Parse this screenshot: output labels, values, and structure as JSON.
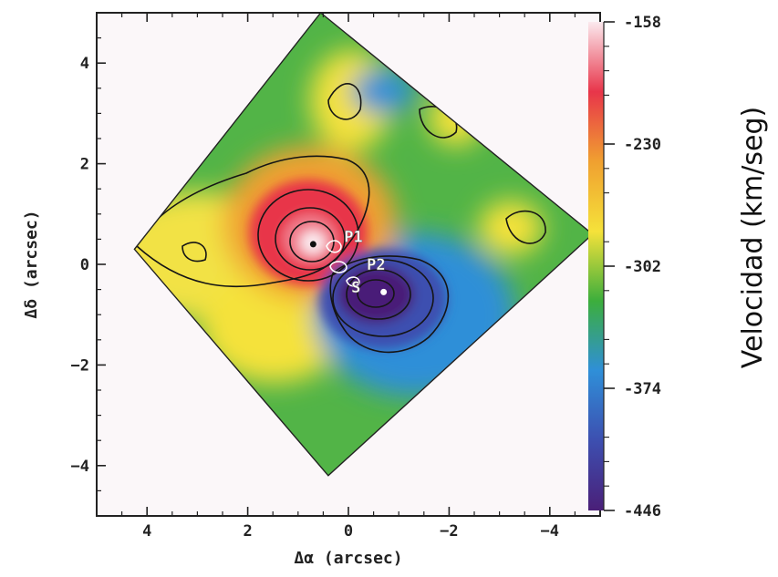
{
  "chart_data": {
    "type": "heatmap",
    "title": "",
    "xlabel": "Δα (arcsec)",
    "ylabel": "Δδ (arcsec)",
    "xlim": [
      5,
      -5
    ],
    "ylim": [
      -5,
      5
    ],
    "x_ticks": [
      4,
      2,
      0,
      -2,
      -4
    ],
    "y_ticks": [
      4,
      2,
      0,
      -2,
      -4
    ],
    "x_tick_labels": [
      "4",
      "2",
      "0",
      "−2",
      "−4"
    ],
    "y_tick_labels": [
      "4",
      "2",
      "0",
      "−2",
      "−4"
    ],
    "colorbar": {
      "label": "Velocidad (km/seg)",
      "min": -446,
      "max": -158,
      "ticks": [
        -158,
        -230,
        -302,
        -374,
        -446
      ],
      "tick_labels": [
        "-158",
        "-230",
        "-302",
        "-374",
        "-446"
      ],
      "colors": [
        "#fbe9ee",
        "#e8354a",
        "#f0a030",
        "#f5e23a",
        "#3cae3c",
        "#2f8fd8",
        "#3d4fb0",
        "#4a1f78"
      ]
    },
    "features": [
      {
        "label": "P1",
        "x": -0.1,
        "y": 0.55
      },
      {
        "label": "P2",
        "x": -0.55,
        "y": 0.0
      },
      {
        "label": "S",
        "x": -0.15,
        "y": -0.45
      }
    ],
    "extrema": [
      {
        "kind": "max",
        "value": -158,
        "x": 0.7,
        "y": 0.4
      },
      {
        "kind": "min",
        "value": -446,
        "x": -0.7,
        "y": -0.55
      }
    ],
    "field_of_view": {
      "corners": [
        [
          0.55,
          5.0
        ],
        [
          -4.85,
          0.6
        ],
        [
          0.4,
          -4.2
        ],
        [
          4.25,
          0.3
        ]
      ]
    }
  }
}
